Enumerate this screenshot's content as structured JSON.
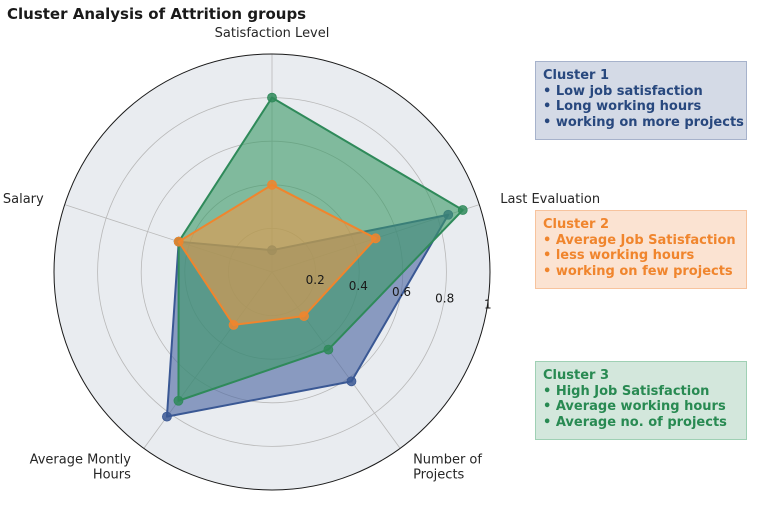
{
  "chart_data": {
    "type": "radar",
    "title": "Cluster Analysis of Attrition groups",
    "axes": [
      "Satisfaction Level",
      "Last Evaluation",
      "Number of\nProjects",
      "Average Montly\nHours",
      "Salary"
    ],
    "rlim": [
      0,
      1
    ],
    "rticks": [
      0.2,
      0.4,
      0.6,
      0.8,
      1
    ],
    "rtick_labels": [
      "0.2",
      "0.4",
      "0.6",
      "0.8",
      "1"
    ],
    "grid": true,
    "series": [
      {
        "values": [
          0.1,
          0.85,
          0.62,
          0.82,
          0.45
        ],
        "color": "#3a5894",
        "fill": "#4a64a0"
      },
      {
        "values": [
          0.8,
          0.92,
          0.44,
          0.73,
          0.45
        ],
        "color": "#2f8a5a",
        "fill": "#3a9a66"
      },
      {
        "values": [
          0.4,
          0.5,
          0.25,
          0.3,
          0.45
        ],
        "color": "#f0852d",
        "fill": "#e89a4a"
      }
    ]
  },
  "legend_boxes": [
    {
      "title": "Cluster 1",
      "lines": [
        "• Low job satisfaction",
        "• Long working hours",
        "• working on more projects"
      ]
    },
    {
      "title": "Cluster 2",
      "lines": [
        "• Average Job Satisfaction",
        "• less working hours",
        "• working on few projects"
      ]
    },
    {
      "title": "Cluster 3",
      "lines": [
        "• High Job Satisfaction",
        "• Average working hours",
        "• Average no. of projects"
      ]
    }
  ],
  "colors": {
    "plot_background": "#e9ecf0",
    "grid": "#b8b8b8",
    "outer_circle": "#1a1a1a"
  }
}
